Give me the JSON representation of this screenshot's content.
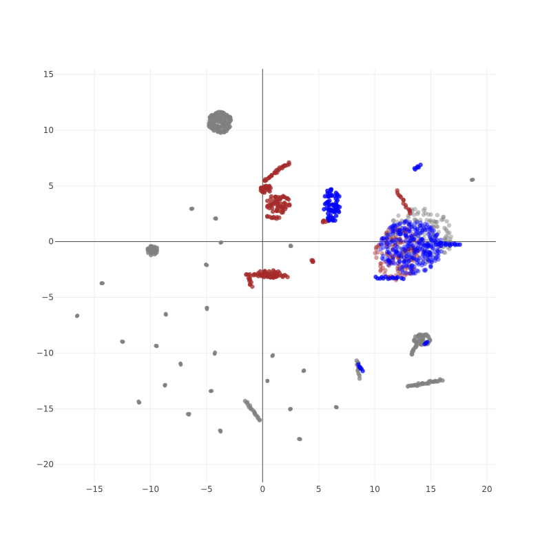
{
  "chart_data": {
    "type": "scatter",
    "title": "",
    "xlabel": "",
    "ylabel": "",
    "xlim": [
      -18.5,
      20.8
    ],
    "ylim": [
      -21.6,
      15.5
    ],
    "x_ticks": [
      -15,
      -10,
      -5,
      0,
      5,
      10,
      15,
      20
    ],
    "y_ticks": [
      15,
      10,
      5,
      0,
      -5,
      -10,
      -15,
      -20
    ],
    "x_tick_labels": [
      "−15",
      "−10",
      "−5",
      "0",
      "5",
      "10",
      "15",
      "20"
    ],
    "y_tick_labels": [
      "15",
      "10",
      "5",
      "0",
      "−5",
      "−10",
      "−15",
      "−20"
    ],
    "grid": true,
    "zero_lines": true,
    "legend": "none",
    "colors": {
      "gray": "#808080",
      "red": "#a52a2a",
      "blue": "#0000ff",
      "grid": "#eeeeee",
      "zeroline": "#444444"
    },
    "series": [
      {
        "color": "#808080",
        "clusters": [
          {
            "kind": "blob",
            "cx": -3.8,
            "cy": 10.7,
            "rx": 1.1,
            "ry": 1.0,
            "n": 160
          },
          {
            "kind": "blob",
            "cx": -9.8,
            "cy": -0.8,
            "rx": 0.5,
            "ry": 0.45,
            "n": 50
          },
          {
            "kind": "blob",
            "cx": 14.2,
            "cy": -8.8,
            "rx": 0.8,
            "ry": 0.6,
            "n": 40
          },
          {
            "kind": "line",
            "from": [
              13.0,
              -13.0
            ],
            "to": [
              16.0,
              -12.4
            ],
            "n": 30
          },
          {
            "kind": "line",
            "from": [
              13.2,
              -10.2
            ],
            "to": [
              13.8,
              -9.0
            ],
            "n": 12
          },
          {
            "kind": "line",
            "from": [
              -1.5,
              -14.3
            ],
            "to": [
              -0.3,
              -16.1
            ],
            "n": 18
          },
          {
            "kind": "line",
            "from": [
              8.4,
              -10.6
            ],
            "to": [
              8.6,
              -12.2
            ],
            "n": 10
          },
          {
            "kind": "cloud",
            "cx": 14.0,
            "cy": 0.5,
            "rx": 3.0,
            "ry": 2.5,
            "n": 160
          },
          {
            "kind": "points",
            "pts": [
              [
                -6.3,
                3.0
              ],
              [
                -4.2,
                2.1
              ],
              [
                -3.7,
                -0.1
              ],
              [
                -5.0,
                -2.1
              ],
              [
                -14.3,
                -3.7
              ],
              [
                -16.5,
                -6.7
              ],
              [
                -8.6,
                -6.5
              ],
              [
                -5.0,
                -6.0
              ],
              [
                -12.5,
                -9.0
              ],
              [
                -9.5,
                -9.4
              ],
              [
                -4.3,
                -10.0
              ],
              [
                -7.3,
                -11.0
              ],
              [
                -8.7,
                -12.9
              ],
              [
                -4.6,
                -13.4
              ],
              [
                -11.0,
                -14.4
              ],
              [
                -6.6,
                -15.5
              ],
              [
                -3.8,
                -17.0
              ],
              [
                0.9,
                -10.2
              ],
              [
                0.4,
                -12.5
              ],
              [
                2.5,
                -15.0
              ],
              [
                3.7,
                -11.6
              ],
              [
                3.3,
                -17.7
              ],
              [
                6.6,
                -14.8
              ],
              [
                2.5,
                -0.4
              ],
              [
                18.7,
                5.5
              ]
            ]
          }
        ]
      },
      {
        "color": "#a52a2a",
        "clusters": [
          {
            "kind": "line",
            "from": [
              0.2,
              5.4
            ],
            "to": [
              1.2,
              6.3
            ],
            "n": 14
          },
          {
            "kind": "line",
            "from": [
              1.2,
              6.3
            ],
            "to": [
              2.4,
              7.1
            ],
            "n": 14
          },
          {
            "kind": "blob",
            "cx": 0.3,
            "cy": 4.7,
            "rx": 0.5,
            "ry": 0.4,
            "n": 30
          },
          {
            "kind": "blob",
            "cx": 1.4,
            "cy": 3.4,
            "rx": 1.1,
            "ry": 0.9,
            "n": 60
          },
          {
            "kind": "line",
            "from": [
              0.4,
              2.2
            ],
            "to": [
              1.4,
              2.1
            ],
            "n": 10
          },
          {
            "kind": "line",
            "from": [
              -1.5,
              -3.0
            ],
            "to": [
              2.2,
              -3.1
            ],
            "n": 30
          },
          {
            "kind": "blob",
            "cx": 0.7,
            "cy": -2.9,
            "rx": 1.2,
            "ry": 0.4,
            "n": 40
          },
          {
            "kind": "line",
            "from": [
              -1.2,
              -3.2
            ],
            "to": [
              -1.0,
              -4.0
            ],
            "n": 8
          },
          {
            "kind": "line",
            "from": [
              4.4,
              -1.7
            ],
            "to": [
              4.6,
              -1.9
            ],
            "n": 4
          },
          {
            "kind": "line",
            "from": [
              5.3,
              1.7
            ],
            "to": [
              5.9,
              2.0
            ],
            "n": 6
          },
          {
            "kind": "cloud",
            "cx": 12.0,
            "cy": -1.0,
            "rx": 2.0,
            "ry": 2.5,
            "n": 120
          },
          {
            "kind": "line",
            "from": [
              12.0,
              4.6
            ],
            "to": [
              13.2,
              2.5
            ],
            "n": 14
          }
        ]
      },
      {
        "color": "#0000ff",
        "clusters": [
          {
            "kind": "blob",
            "cx": 6.2,
            "cy": 3.3,
            "rx": 0.8,
            "ry": 1.6,
            "n": 70
          },
          {
            "kind": "cloud",
            "cx": 13.2,
            "cy": -0.5,
            "rx": 2.8,
            "ry": 2.4,
            "n": 320
          },
          {
            "kind": "line",
            "from": [
              13.6,
              6.5
            ],
            "to": [
              14.1,
              6.8
            ],
            "n": 6
          },
          {
            "kind": "line",
            "from": [
              8.6,
              -11.1
            ],
            "to": [
              8.9,
              -11.6
            ],
            "n": 6
          },
          {
            "kind": "line",
            "from": [
              14.5,
              -9.3
            ],
            "to": [
              14.6,
              -9.1
            ],
            "n": 3
          },
          {
            "kind": "line",
            "from": [
              15.5,
              -0.2
            ],
            "to": [
              17.5,
              -0.3
            ],
            "n": 14
          },
          {
            "kind": "line",
            "from": [
              10.0,
              -3.2
            ],
            "to": [
              12.5,
              -3.3
            ],
            "n": 14
          }
        ]
      }
    ]
  }
}
